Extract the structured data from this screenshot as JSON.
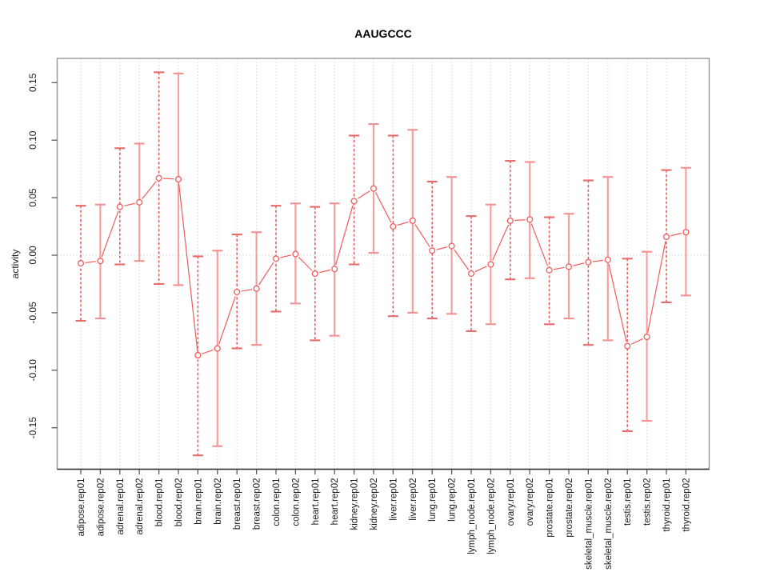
{
  "figure": {
    "title": "AAUGCCC",
    "ylabel": "activity"
  },
  "chart_data": {
    "type": "scatter",
    "subtype": "errorbar-ci-plot",
    "title": "AAUGCCC",
    "xlabel": "",
    "ylabel": "activity",
    "legend": "none",
    "grid": "dotted vertical line per category; dotted horizontal line at y=0",
    "marker": "open-circle",
    "ylim": [
      -0.186,
      0.171
    ],
    "yticks": {
      "values": [
        0.15,
        0.1,
        0.05,
        0.0,
        -0.05,
        -0.1,
        -0.15
      ],
      "labels": [
        "0.15",
        "0.10",
        "0.05",
        "0.00",
        "-0.05",
        "-0.10",
        "-0.15"
      ]
    },
    "categories": [
      "adipose.rep01",
      "adipose.rep02",
      "adrenal.rep01",
      "adrenal.rep02",
      "blood.rep01",
      "blood.rep02",
      "brain.rep01",
      "brain.rep02",
      "breast.rep01",
      "breast.rep02",
      "colon.rep01",
      "colon.rep02",
      "heart.rep01",
      "heart.rep02",
      "kidney.rep01",
      "kidney.rep02",
      "liver.rep01",
      "liver.rep02",
      "lung.rep01",
      "lung.rep02",
      "lymph_node.rep01",
      "lymph_node.rep02",
      "ovary.rep01",
      "ovary.rep02",
      "prostate.rep01",
      "prostate.rep02",
      "skeletal_muscle.rep01",
      "skeletal_muscle.rep02",
      "testis.rep01",
      "testis.rep02",
      "thyroid.rep01",
      "thyroid.rep02"
    ],
    "series": [
      {
        "name": "activity",
        "values": [
          -0.007,
          -0.005,
          0.042,
          0.046,
          0.067,
          0.066,
          -0.087,
          -0.081,
          -0.032,
          -0.029,
          -0.003,
          0.001,
          -0.016,
          -0.012,
          0.047,
          0.058,
          0.025,
          0.03,
          0.004,
          0.008,
          -0.016,
          -0.008,
          0.03,
          0.031,
          -0.013,
          -0.01,
          -0.006,
          -0.004,
          -0.079,
          -0.071,
          0.016,
          0.02
        ],
        "error_high": [
          0.043,
          0.044,
          0.093,
          0.097,
          0.159,
          0.158,
          -0.001,
          0.004,
          0.018,
          0.02,
          0.043,
          0.045,
          0.042,
          0.045,
          0.104,
          0.114,
          0.104,
          0.109,
          0.064,
          0.068,
          0.034,
          0.044,
          0.082,
          0.081,
          0.033,
          0.036,
          0.065,
          0.068,
          -0.003,
          0.003,
          0.074,
          0.076
        ],
        "error_low": [
          -0.057,
          -0.055,
          -0.008,
          -0.005,
          -0.025,
          -0.026,
          -0.174,
          -0.166,
          -0.081,
          -0.078,
          -0.049,
          -0.042,
          -0.074,
          -0.07,
          -0.008,
          0.002,
          -0.053,
          -0.05,
          -0.055,
          -0.051,
          -0.066,
          -0.06,
          -0.021,
          -0.02,
          -0.06,
          -0.055,
          -0.078,
          -0.074,
          -0.153,
          -0.144,
          -0.041,
          -0.035
        ]
      }
    ],
    "colors": {
      "series": "#ee5c5c",
      "bar_dashed": "#e35f5f",
      "bar_solid": "#f5a0a0",
      "cap_dashed": "#e96a6a",
      "cap_solid": "#f29191",
      "grid": "#d7d7d7",
      "frame": "#979797",
      "axis": "#2e2e2e",
      "tick": "#5a5a5a",
      "text": "#1a1a1a"
    }
  }
}
